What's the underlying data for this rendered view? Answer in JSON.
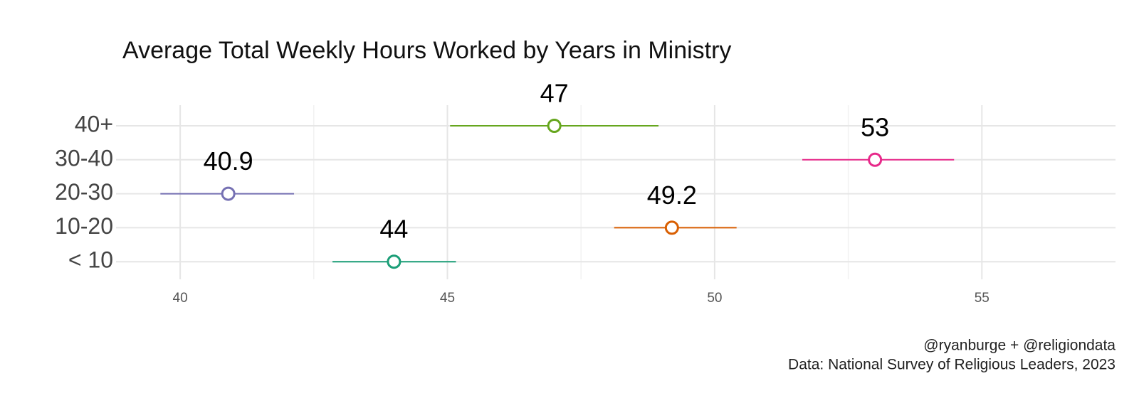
{
  "chart_data": {
    "type": "dot",
    "title": "Average Total Weekly Hours Worked by Years in Ministry",
    "categories": [
      "40+",
      "30-40",
      "20-30",
      "10-20",
      "< 10"
    ],
    "values": [
      47,
      53,
      40.9,
      49.2,
      44
    ],
    "lower": [
      45.05,
      51.64,
      39.63,
      48.12,
      42.85
    ],
    "upper": [
      48.95,
      54.48,
      42.13,
      50.41,
      45.16
    ],
    "colors": [
      "#66a61e",
      "#e7298a",
      "#7570b3",
      "#d95f02",
      "#1b9e77"
    ],
    "xlim": [
      38.8,
      57.5
    ],
    "xticks": [
      40,
      45,
      50,
      55
    ],
    "xminor": [
      42.5,
      47.5,
      52.5
    ],
    "grid": true,
    "caption": [
      "@ryanburge + @religiondata",
      "Data: National Survey of Religious Leaders, 2023"
    ]
  }
}
